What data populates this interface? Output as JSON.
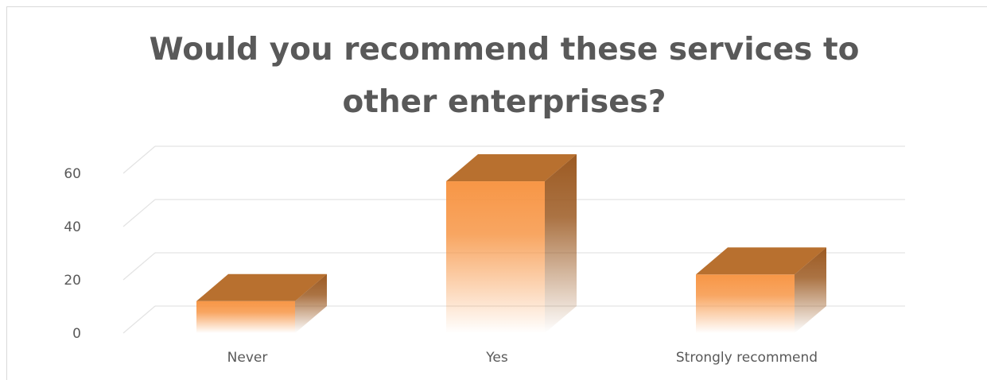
{
  "chart_data": {
    "type": "bar",
    "title_lines": [
      "Would you recommend these services to",
      "other enterprises?"
    ],
    "categories": [
      "Never",
      "Yes",
      "Strongly recommend"
    ],
    "values": [
      12,
      57,
      22
    ],
    "ylim": [
      0,
      60
    ],
    "yticks": [
      "0",
      "20",
      "40",
      "60"
    ],
    "grid": true,
    "style": "3d-column",
    "colors": {
      "front": "#f79646",
      "top": "#b8702f",
      "side": "#9c5a22",
      "grid": "#e3e3e3",
      "text": "#595959"
    }
  }
}
